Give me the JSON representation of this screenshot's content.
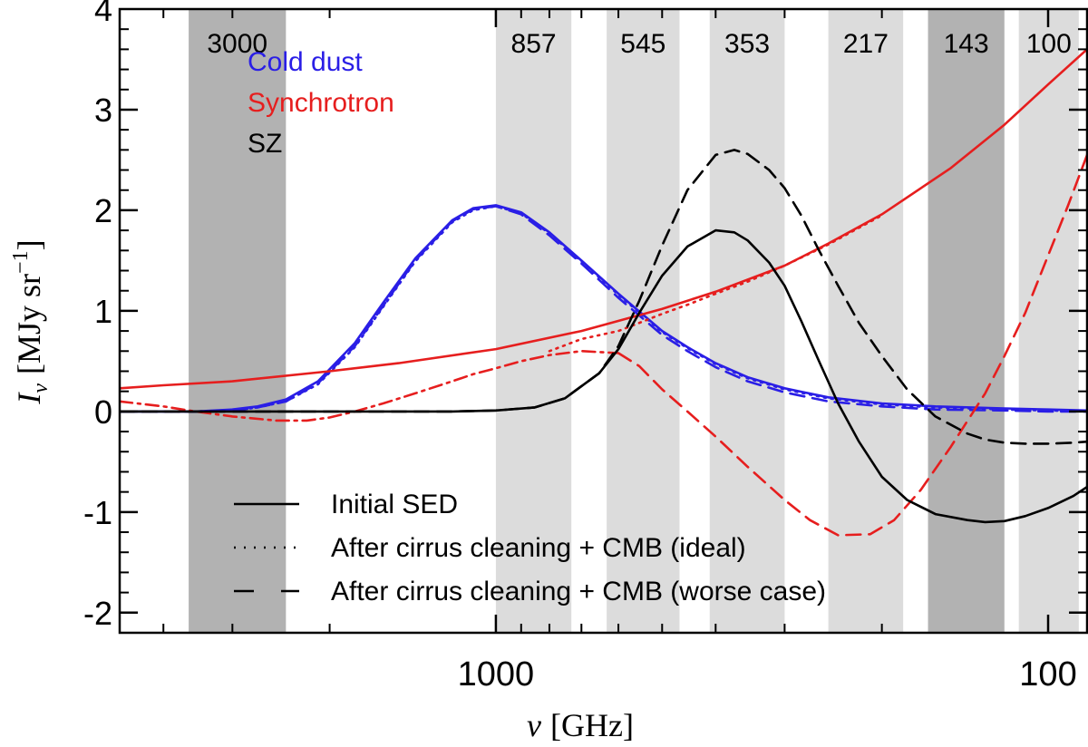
{
  "chart_data": {
    "type": "line",
    "xlabel": "ν [GHz]",
    "xlabel_symbol": "ν",
    "xlabel_unit": "[GHz]",
    "ylabel": "Iν [MJy sr⁻¹]",
    "ylabel_symbol": "I",
    "ylabel_sub": "ν",
    "ylabel_unit_main": "[MJy sr",
    "ylabel_unit_sup": "−1",
    "ylabel_unit_close": "]",
    "x_scale": "log",
    "x_reversed": true,
    "xlim": [
      4800,
      85
    ],
    "ylim": [
      -2.2,
      4.0
    ],
    "x_ticks": [
      {
        "value": 1000,
        "label": "1000"
      },
      {
        "value": 100,
        "label": "100"
      }
    ],
    "y_ticks": [
      {
        "value": -2,
        "label": "-2"
      },
      {
        "value": -1,
        "label": "-1"
      },
      {
        "value": 0,
        "label": "0"
      },
      {
        "value": 1,
        "label": "1"
      },
      {
        "value": 2,
        "label": "2"
      },
      {
        "value": 3,
        "label": "3"
      },
      {
        "value": 4,
        "label": "4"
      }
    ],
    "bands": [
      {
        "label": "3000",
        "lo": 2400,
        "hi": 3600,
        "shade": "#b2b2b2"
      },
      {
        "label": "857",
        "lo": 730,
        "hi": 1000,
        "shade": "#dcdcdc"
      },
      {
        "label": "545",
        "lo": 465,
        "hi": 630,
        "shade": "#dcdcdc"
      },
      {
        "label": "353",
        "lo": 300,
        "hi": 410,
        "shade": "#dcdcdc"
      },
      {
        "label": "217",
        "lo": 183,
        "hi": 250,
        "shade": "#dcdcdc"
      },
      {
        "label": "143",
        "lo": 120,
        "hi": 165,
        "shade": "#b2b2b2"
      },
      {
        "label": "100",
        "lo": 88,
        "hi": 113,
        "shade": "#dcdcdc"
      }
    ],
    "component_labels": [
      {
        "name": "Cold dust",
        "color": "#2a1ee6"
      },
      {
        "name": "Synchrotron",
        "color": "#e61e1e"
      },
      {
        "name": "SZ",
        "color": "#000000"
      }
    ],
    "legend": [
      {
        "label": "Initial SED",
        "style": "solid"
      },
      {
        "label": "After cirrus cleaning + CMB (ideal)",
        "style": "dotted"
      },
      {
        "label": "After cirrus cleaning + CMB (worse case)",
        "style": "dashed"
      }
    ],
    "series": [
      {
        "name": "Cold dust (initial)",
        "component": "Cold dust",
        "style": "solid",
        "color": "#2a1ee6",
        "x": [
          4800,
          4000,
          3500,
          3000,
          2700,
          2400,
          2100,
          1800,
          1600,
          1400,
          1200,
          1100,
          1000,
          900,
          800,
          700,
          600,
          500,
          450,
          400,
          350,
          300,
          250,
          200,
          160,
          120,
          100,
          85
        ],
        "y": [
          0.0,
          0.0,
          0.0,
          0.02,
          0.05,
          0.12,
          0.3,
          0.68,
          1.08,
          1.52,
          1.9,
          2.02,
          2.05,
          1.98,
          1.78,
          1.5,
          1.17,
          0.8,
          0.64,
          0.48,
          0.34,
          0.23,
          0.14,
          0.08,
          0.05,
          0.03,
          0.02,
          0.01
        ]
      },
      {
        "name": "Cold dust (ideal)",
        "component": "Cold dust",
        "style": "dotted",
        "color": "#2a1ee6",
        "x": [
          4800,
          4000,
          3500,
          3000,
          2700,
          2400,
          2100,
          1800,
          1600,
          1400,
          1200,
          1100,
          1000,
          900,
          800,
          700,
          600,
          500,
          450,
          400,
          350,
          300,
          250,
          200,
          160,
          120,
          100,
          85
        ],
        "y": [
          0.0,
          0.0,
          0.0,
          0.01,
          0.04,
          0.1,
          0.27,
          0.64,
          1.04,
          1.49,
          1.88,
          2.0,
          2.04,
          1.97,
          1.77,
          1.49,
          1.16,
          0.79,
          0.63,
          0.47,
          0.33,
          0.22,
          0.13,
          0.07,
          0.04,
          0.02,
          0.01,
          0.0
        ]
      },
      {
        "name": "Cold dust (worse case)",
        "component": "Cold dust",
        "style": "dashed",
        "color": "#2a1ee6",
        "x": [
          4800,
          4000,
          3500,
          3000,
          2700,
          2400,
          2100,
          1800,
          1600,
          1400,
          1200,
          1100,
          1000,
          900,
          800,
          700,
          600,
          500,
          450,
          400,
          350,
          300,
          250,
          200,
          160,
          120,
          100,
          85
        ],
        "y": [
          0.0,
          0.0,
          0.0,
          0.01,
          0.04,
          0.1,
          0.28,
          0.65,
          1.05,
          1.5,
          1.89,
          2.01,
          2.04,
          1.96,
          1.75,
          1.47,
          1.13,
          0.76,
          0.6,
          0.44,
          0.3,
          0.19,
          0.1,
          0.05,
          0.02,
          0.01,
          0.0,
          0.0
        ]
      },
      {
        "name": "Synchrotron (initial)",
        "component": "Synchrotron",
        "style": "solid",
        "color": "#e61e1e",
        "x": [
          4800,
          4000,
          3000,
          2000,
          1500,
          1000,
          700,
          500,
          400,
          300,
          250,
          200,
          150,
          120,
          100,
          85
        ],
        "y": [
          0.23,
          0.26,
          0.3,
          0.4,
          0.48,
          0.62,
          0.8,
          1.02,
          1.19,
          1.45,
          1.67,
          1.96,
          2.42,
          2.85,
          3.25,
          3.6
        ]
      },
      {
        "name": "Synchrotron (ideal)",
        "component": "Synchrotron",
        "style": "dotted",
        "color": "#e61e1e",
        "x": [
          800,
          700,
          600,
          550,
          500,
          450,
          400,
          350,
          300,
          250,
          200
        ],
        "y": [
          0.6,
          0.72,
          0.8,
          0.88,
          0.97,
          1.06,
          1.17,
          1.29,
          1.45,
          1.66,
          1.95
        ]
      },
      {
        "name": "Synchrotron (worse case)",
        "component": "Synchrotron",
        "style": "dashed",
        "color": "#e61e1e",
        "x": [
          600,
          550,
          500,
          450,
          400,
          350,
          300,
          270,
          240,
          210,
          190,
          170,
          150,
          130,
          120,
          110,
          100,
          92,
          85
        ],
        "y": [
          0.58,
          0.45,
          0.22,
          0.0,
          -0.25,
          -0.55,
          -0.88,
          -1.08,
          -1.23,
          -1.22,
          -1.08,
          -0.78,
          -0.35,
          0.18,
          0.55,
          0.98,
          1.55,
          2.05,
          2.55
        ]
      },
      {
        "name": "Synchrotron (dash-dot)",
        "component": "Synchrotron",
        "style": "dashdot",
        "color": "#e61e1e",
        "x": [
          4800,
          4000,
          3500,
          3000,
          2500,
          2200,
          2000,
          1800,
          1600,
          1400,
          1200,
          1100,
          1000,
          900,
          800,
          700,
          600
        ],
        "y": [
          0.1,
          0.05,
          0.0,
          -0.05,
          -0.09,
          -0.09,
          -0.06,
          0.0,
          0.08,
          0.18,
          0.3,
          0.37,
          0.43,
          0.5,
          0.56,
          0.6,
          0.58
        ]
      },
      {
        "name": "SZ (initial)",
        "component": "SZ",
        "style": "solid",
        "color": "#000000",
        "x": [
          4800,
          2000,
          1200,
          1000,
          850,
          750,
          650,
          600,
          550,
          500,
          450,
          400,
          370,
          350,
          320,
          300,
          280,
          260,
          240,
          220,
          200,
          180,
          160,
          140,
          130,
          120,
          110,
          100,
          90,
          85
        ],
        "y": [
          0.0,
          0.0,
          0.0,
          0.01,
          0.04,
          0.13,
          0.38,
          0.62,
          0.98,
          1.35,
          1.64,
          1.8,
          1.78,
          1.7,
          1.48,
          1.25,
          0.9,
          0.5,
          0.08,
          -0.3,
          -0.65,
          -0.88,
          -1.02,
          -1.08,
          -1.1,
          -1.09,
          -1.04,
          -0.96,
          -0.84,
          -0.75
        ]
      },
      {
        "name": "SZ (worse case)",
        "component": "SZ",
        "style": "dashed",
        "color": "#000000",
        "x": [
          4800,
          2000,
          1200,
          1000,
          850,
          750,
          650,
          600,
          550,
          500,
          450,
          400,
          370,
          350,
          320,
          300,
          280,
          260,
          240,
          220,
          200,
          180,
          160,
          140,
          130,
          120,
          110,
          100,
          90,
          85
        ],
        "y": [
          0.0,
          0.0,
          0.0,
          0.01,
          0.04,
          0.13,
          0.38,
          0.65,
          1.1,
          1.65,
          2.2,
          2.55,
          2.6,
          2.56,
          2.4,
          2.22,
          1.95,
          1.6,
          1.25,
          0.88,
          0.55,
          0.22,
          -0.05,
          -0.22,
          -0.28,
          -0.31,
          -0.32,
          -0.32,
          -0.31,
          -0.3
        ]
      }
    ]
  }
}
